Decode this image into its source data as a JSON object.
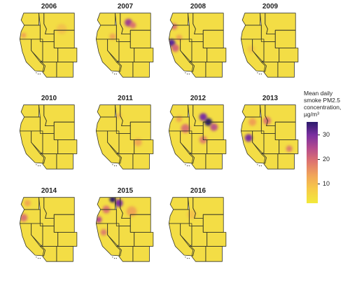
{
  "years": [
    "2006",
    "2007",
    "2008",
    "2009",
    "2010",
    "2011",
    "2012",
    "2013",
    "2014",
    "2015",
    "2016"
  ],
  "panels": [
    {
      "year": "2006",
      "hotspots": [
        {
          "cx": 10,
          "cy": 38,
          "r": 4,
          "c": "#ef9a55",
          "o": 0.9
        },
        {
          "cx": 70,
          "cy": 28,
          "r": 8,
          "c": "#f3b84e",
          "o": 0.7
        }
      ]
    },
    {
      "year": "2007",
      "hotspots": [
        {
          "cx": 55,
          "cy": 18,
          "r": 6,
          "c": "#a04090",
          "o": 1
        },
        {
          "cx": 62,
          "cy": 22,
          "r": 5,
          "c": "#d86a72",
          "o": 0.9
        },
        {
          "cx": 30,
          "cy": 40,
          "r": 5,
          "c": "#ef9a55",
          "o": 0.8
        }
      ]
    },
    {
      "year": "2008",
      "hotspots": [
        {
          "cx": 8,
          "cy": 50,
          "r": 6,
          "c": "#5a2a9a",
          "o": 1
        },
        {
          "cx": 14,
          "cy": 58,
          "r": 6,
          "c": "#d15c7a",
          "o": 0.9
        },
        {
          "cx": 12,
          "cy": 24,
          "r": 5,
          "c": "#d86a72",
          "o": 0.9
        },
        {
          "cx": 20,
          "cy": 42,
          "r": 5,
          "c": "#ef9a55",
          "o": 0.8
        }
      ]
    },
    {
      "year": "2009",
      "hotspots": [
        {
          "cx": 20,
          "cy": 60,
          "r": 6,
          "c": "#f3b84e",
          "o": 0.6
        }
      ]
    },
    {
      "year": "2010",
      "hotspots": []
    },
    {
      "year": "2011",
      "hotspots": [
        {
          "cx": 70,
          "cy": 62,
          "r": 6,
          "c": "#ef9a55",
          "o": 0.8
        },
        {
          "cx": 40,
          "cy": 20,
          "r": 4,
          "c": "#ef9a55",
          "o": 0.6
        }
      ]
    },
    {
      "year": "2012",
      "hotspots": [
        {
          "cx": 66,
          "cy": 30,
          "r": 6,
          "c": "#2b1b6b",
          "o": 1
        },
        {
          "cx": 58,
          "cy": 22,
          "r": 6,
          "c": "#7a2fa0",
          "o": 1
        },
        {
          "cx": 75,
          "cy": 38,
          "r": 6,
          "c": "#b44a8e",
          "o": 0.9
        },
        {
          "cx": 30,
          "cy": 40,
          "r": 7,
          "c": "#d86a72",
          "o": 0.9
        },
        {
          "cx": 58,
          "cy": 58,
          "r": 6,
          "c": "#d86a72",
          "o": 0.8
        },
        {
          "cx": 20,
          "cy": 25,
          "r": 5,
          "c": "#ef9a55",
          "o": 0.8
        }
      ]
    },
    {
      "year": "2013",
      "hotspots": [
        {
          "cx": 16,
          "cy": 55,
          "r": 6,
          "c": "#7a2fa0",
          "o": 1
        },
        {
          "cx": 45,
          "cy": 28,
          "r": 6,
          "c": "#d86a72",
          "o": 0.9
        },
        {
          "cx": 22,
          "cy": 30,
          "r": 6,
          "c": "#ef9a55",
          "o": 0.9
        },
        {
          "cx": 80,
          "cy": 72,
          "r": 5,
          "c": "#d86a72",
          "o": 0.8
        }
      ]
    },
    {
      "year": "2014",
      "hotspots": [
        {
          "cx": 10,
          "cy": 35,
          "r": 6,
          "c": "#d86a72",
          "o": 0.9
        },
        {
          "cx": 16,
          "cy": 12,
          "r": 5,
          "c": "#ef9a55",
          "o": 0.8
        }
      ]
    },
    {
      "year": "2015",
      "hotspots": [
        {
          "cx": 30,
          "cy": 6,
          "r": 5,
          "c": "#2b1b6b",
          "o": 1
        },
        {
          "cx": 40,
          "cy": 12,
          "r": 6,
          "c": "#7a2fa0",
          "o": 1
        },
        {
          "cx": 8,
          "cy": 38,
          "r": 5,
          "c": "#b44a8e",
          "o": 1
        },
        {
          "cx": 20,
          "cy": 22,
          "r": 6,
          "c": "#d86a72",
          "o": 0.9
        },
        {
          "cx": 60,
          "cy": 25,
          "r": 8,
          "c": "#ef9a55",
          "o": 0.8
        },
        {
          "cx": 16,
          "cy": 58,
          "r": 5,
          "c": "#d86a72",
          "o": 0.8
        }
      ]
    },
    {
      "year": "2016",
      "hotspots": [
        {
          "cx": 40,
          "cy": 30,
          "r": 7,
          "c": "#f3b84e",
          "o": 0.7
        }
      ]
    }
  ],
  "legend": {
    "title_lines": [
      "Mean daily",
      "smoke PM2.5",
      "concentration,",
      "µg/m³"
    ],
    "ticks": [
      {
        "value": 30,
        "label": "30"
      },
      {
        "value": 20,
        "label": "20"
      },
      {
        "value": 10,
        "label": "10"
      }
    ],
    "range": [
      2,
      35
    ],
    "colors": {
      "low": "#f2e93a",
      "mid": "#dd7270",
      "high": "#2b1b6b"
    }
  }
}
